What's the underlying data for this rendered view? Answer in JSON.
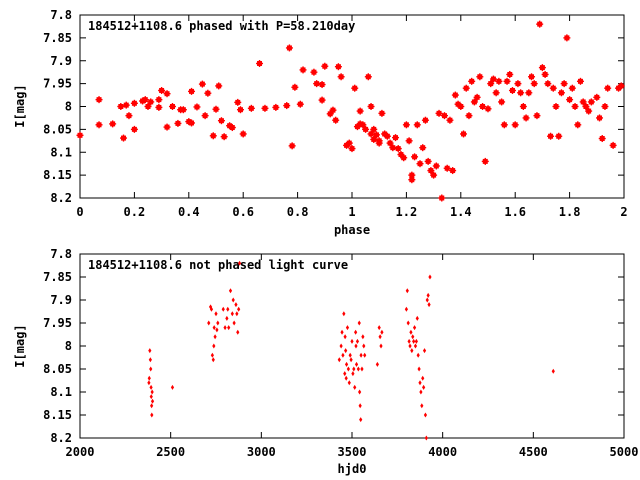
{
  "chart_data": [
    {
      "type": "scatter",
      "title": "184512+1108.6 phased with P=58.210day",
      "xlabel": "phase",
      "ylabel": "I[mag]",
      "xlim": [
        0,
        2
      ],
      "ylim": [
        8.2,
        7.8
      ],
      "y_inverted": true,
      "xticks": [
        "0",
        "0.2",
        "0.4",
        "0.6",
        "0.8",
        "1",
        "1.2",
        "1.4",
        "1.6",
        "1.8",
        "2"
      ],
      "yticks": [
        "7.8",
        "7.85",
        "7.9",
        "7.95",
        "8",
        "8.05",
        "8.1",
        "8.15",
        "8.2"
      ],
      "grid": false,
      "marker_color": "#ff0000",
      "series": [
        {
          "points": [
            [
              0.0,
              8.063
            ],
            [
              0.07,
              7.985
            ],
            [
              0.07,
              8.04
            ],
            [
              0.12,
              8.038
            ],
            [
              0.15,
              8.0
            ],
            [
              0.16,
              8.069
            ],
            [
              0.17,
              7.997
            ],
            [
              0.18,
              8.02
            ],
            [
              0.2,
              7.993
            ],
            [
              0.2,
              8.05
            ],
            [
              0.23,
              7.988
            ],
            [
              0.24,
              7.985
            ],
            [
              0.25,
              8.0
            ],
            [
              0.26,
              7.99
            ],
            [
              0.29,
              7.985
            ],
            [
              0.29,
              8.002
            ],
            [
              0.3,
              7.965
            ],
            [
              0.32,
              7.972
            ],
            [
              0.32,
              8.045
            ],
            [
              0.34,
              8.0
            ],
            [
              0.36,
              8.037
            ],
            [
              0.37,
              8.007
            ],
            [
              0.38,
              8.007
            ],
            [
              0.4,
              8.033
            ],
            [
              0.41,
              7.967
            ],
            [
              0.41,
              8.036
            ],
            [
              0.43,
              8.001
            ],
            [
              0.45,
              7.951
            ],
            [
              0.46,
              8.02
            ],
            [
              0.47,
              7.971
            ],
            [
              0.49,
              8.064
            ],
            [
              0.5,
              8.006
            ],
            [
              0.51,
              7.955
            ],
            [
              0.52,
              8.031
            ],
            [
              0.53,
              8.066
            ],
            [
              0.55,
              8.042
            ],
            [
              0.56,
              8.046
            ],
            [
              0.58,
              7.991
            ],
            [
              0.59,
              8.007
            ],
            [
              0.6,
              8.06
            ],
            [
              0.63,
              8.004
            ],
            [
              0.66,
              7.906
            ],
            [
              0.68,
              8.004
            ],
            [
              0.72,
              8.002
            ],
            [
              0.76,
              7.998
            ],
            [
              0.77,
              7.872
            ],
            [
              0.78,
              8.086
            ],
            [
              0.79,
              7.958
            ],
            [
              0.81,
              7.995
            ],
            [
              0.82,
              7.92
            ],
            [
              0.86,
              7.925
            ],
            [
              0.87,
              7.95
            ],
            [
              0.89,
              7.952
            ],
            [
              0.89,
              7.986
            ],
            [
              0.9,
              7.912
            ],
            [
              0.92,
              8.016
            ],
            [
              0.93,
              8.008
            ],
            [
              0.94,
              8.03
            ],
            [
              0.95,
              7.913
            ],
            [
              0.96,
              7.935
            ],
            [
              0.98,
              8.085
            ],
            [
              0.99,
              8.08
            ],
            [
              1.0,
              8.092
            ],
            [
              1.01,
              7.96
            ],
            [
              1.02,
              8.044
            ],
            [
              1.03,
              8.01
            ],
            [
              1.03,
              8.038
            ],
            [
              1.04,
              8.04
            ],
            [
              1.05,
              8.05
            ],
            [
              1.06,
              7.935
            ],
            [
              1.07,
              8.0
            ],
            [
              1.07,
              8.06
            ],
            [
              1.08,
              8.05
            ],
            [
              1.08,
              8.072
            ],
            [
              1.09,
              8.062
            ],
            [
              1.1,
              8.075
            ],
            [
              1.1,
              8.08
            ],
            [
              1.11,
              8.015
            ],
            [
              1.12,
              8.06
            ],
            [
              1.13,
              8.065
            ],
            [
              1.14,
              8.08
            ],
            [
              1.15,
              8.09
            ],
            [
              1.16,
              8.068
            ],
            [
              1.17,
              8.092
            ],
            [
              1.18,
              8.105
            ],
            [
              1.19,
              8.112
            ],
            [
              1.2,
              8.04
            ],
            [
              1.21,
              8.075
            ],
            [
              1.22,
              8.15
            ],
            [
              1.22,
              8.16
            ],
            [
              1.23,
              8.11
            ],
            [
              1.24,
              8.04
            ],
            [
              1.25,
              8.125
            ],
            [
              1.26,
              8.09
            ],
            [
              1.27,
              8.03
            ],
            [
              1.28,
              8.12
            ],
            [
              1.29,
              8.14
            ],
            [
              1.3,
              8.15
            ],
            [
              1.31,
              8.13
            ],
            [
              1.32,
              8.015
            ],
            [
              1.33,
              8.2
            ],
            [
              1.34,
              8.02
            ],
            [
              1.35,
              8.135
            ],
            [
              1.36,
              8.03
            ],
            [
              1.37,
              8.14
            ],
            [
              1.38,
              7.975
            ],
            [
              1.39,
              7.995
            ],
            [
              1.4,
              8.0
            ],
            [
              1.41,
              8.06
            ],
            [
              1.42,
              7.96
            ],
            [
              1.43,
              8.02
            ],
            [
              1.44,
              7.945
            ],
            [
              1.45,
              7.99
            ],
            [
              1.46,
              7.98
            ],
            [
              1.47,
              7.935
            ],
            [
              1.48,
              8.0
            ],
            [
              1.49,
              8.12
            ],
            [
              1.5,
              8.005
            ],
            [
              1.51,
              7.95
            ],
            [
              1.52,
              7.94
            ],
            [
              1.53,
              7.97
            ],
            [
              1.54,
              7.945
            ],
            [
              1.55,
              7.99
            ],
            [
              1.56,
              8.04
            ],
            [
              1.57,
              7.945
            ],
            [
              1.58,
              7.93
            ],
            [
              1.59,
              7.965
            ],
            [
              1.6,
              8.04
            ],
            [
              1.61,
              7.95
            ],
            [
              1.62,
              7.97
            ],
            [
              1.63,
              8.0
            ],
            [
              1.64,
              8.025
            ],
            [
              1.65,
              7.97
            ],
            [
              1.66,
              7.935
            ],
            [
              1.67,
              7.95
            ],
            [
              1.68,
              8.02
            ],
            [
              1.69,
              7.82
            ],
            [
              1.7,
              7.915
            ],
            [
              1.71,
              7.93
            ],
            [
              1.72,
              7.95
            ],
            [
              1.73,
              8.065
            ],
            [
              1.74,
              7.96
            ],
            [
              1.75,
              8.0
            ],
            [
              1.76,
              8.065
            ],
            [
              1.77,
              7.97
            ],
            [
              1.78,
              7.95
            ],
            [
              1.79,
              7.85
            ],
            [
              1.8,
              7.985
            ],
            [
              1.81,
              7.96
            ],
            [
              1.82,
              8.0
            ],
            [
              1.83,
              8.04
            ],
            [
              1.84,
              7.945
            ],
            [
              1.85,
              7.99
            ],
            [
              1.86,
              8.0
            ],
            [
              1.87,
              8.01
            ],
            [
              1.88,
              7.99
            ],
            [
              1.9,
              7.98
            ],
            [
              1.91,
              8.025
            ],
            [
              1.92,
              8.07
            ],
            [
              1.93,
              8.0
            ],
            [
              1.94,
              7.96
            ],
            [
              1.96,
              8.085
            ],
            [
              1.98,
              7.96
            ],
            [
              1.99,
              7.955
            ]
          ]
        }
      ]
    },
    {
      "type": "scatter",
      "title": "184512+1108.6 not phased light curve",
      "xlabel": "hjd0",
      "ylabel": "I[mag]",
      "xlim": [
        2000,
        5000
      ],
      "ylim": [
        8.2,
        7.8
      ],
      "y_inverted": true,
      "xticks": [
        "2000",
        "2500",
        "3000",
        "3500",
        "4000",
        "4500",
        "5000"
      ],
      "yticks": [
        "7.8",
        "7.85",
        "7.9",
        "7.95",
        "8",
        "8.05",
        "8.1",
        "8.15",
        "8.2"
      ],
      "grid": false,
      "marker_color": "#ff0000",
      "series": [
        {
          "points": [
            [
              2380,
              8.08
            ],
            [
              2382,
              8.07
            ],
            [
              2385,
              8.01
            ],
            [
              2388,
              8.03
            ],
            [
              2390,
              8.05
            ],
            [
              2392,
              8.09
            ],
            [
              2393,
              8.11
            ],
            [
              2395,
              8.13
            ],
            [
              2396,
              8.15
            ],
            [
              2398,
              8.1
            ],
            [
              2400,
              8.12
            ],
            [
              2510,
              8.09
            ],
            [
              2710,
              7.95
            ],
            [
              2720,
              7.915
            ],
            [
              2725,
              7.92
            ],
            [
              2730,
              8.02
            ],
            [
              2735,
              8.03
            ],
            [
              2738,
              8.0
            ],
            [
              2740,
              7.96
            ],
            [
              2745,
              7.98
            ],
            [
              2750,
              7.93
            ],
            [
              2755,
              7.965
            ],
            [
              2760,
              7.95
            ],
            [
              2790,
              7.92
            ],
            [
              2800,
              7.96
            ],
            [
              2810,
              7.94
            ],
            [
              2815,
              7.92
            ],
            [
              2820,
              7.96
            ],
            [
              2830,
              7.88
            ],
            [
              2840,
              7.93
            ],
            [
              2845,
              7.9
            ],
            [
              2850,
              7.95
            ],
            [
              2860,
              7.91
            ],
            [
              2865,
              7.93
            ],
            [
              2870,
              7.97
            ],
            [
              2875,
              7.92
            ],
            [
              2880,
              7.82
            ],
            [
              3430,
              8.03
            ],
            [
              3440,
              8.0
            ],
            [
              3445,
              7.97
            ],
            [
              3450,
              8.02
            ],
            [
              3455,
              7.93
            ],
            [
              3460,
              8.06
            ],
            [
              3462,
              7.98
            ],
            [
              3465,
              8.01
            ],
            [
              3468,
              8.07
            ],
            [
              3470,
              8.04
            ],
            [
              3475,
              7.96
            ],
            [
              3480,
              8.05
            ],
            [
              3485,
              8.08
            ],
            [
              3490,
              8.02
            ],
            [
              3495,
              8.03
            ],
            [
              3500,
              7.99
            ],
            [
              3505,
              8.06
            ],
            [
              3510,
              8.05
            ],
            [
              3515,
              8.09
            ],
            [
              3520,
              7.97
            ],
            [
              3522,
              8.0
            ],
            [
              3525,
              8.04
            ],
            [
              3530,
              7.99
            ],
            [
              3535,
              8.05
            ],
            [
              3540,
              7.95
            ],
            [
              3542,
              8.1
            ],
            [
              3545,
              8.13
            ],
            [
              3548,
              8.16
            ],
            [
              3550,
              8.02
            ],
            [
              3555,
              8.05
            ],
            [
              3560,
              7.98
            ],
            [
              3565,
              8.0
            ],
            [
              3570,
              8.02
            ],
            [
              3640,
              8.04
            ],
            [
              3650,
              7.96
            ],
            [
              3655,
              7.98
            ],
            [
              3660,
              8.0
            ],
            [
              3665,
              7.97
            ],
            [
              3800,
              7.92
            ],
            [
              3805,
              7.88
            ],
            [
              3810,
              7.95
            ],
            [
              3815,
              7.99
            ],
            [
              3820,
              8.0
            ],
            [
              3825,
              7.97
            ],
            [
              3830,
              8.01
            ],
            [
              3835,
              7.98
            ],
            [
              3840,
              7.99
            ],
            [
              3845,
              7.96
            ],
            [
              3850,
              8.0
            ],
            [
              3855,
              7.99
            ],
            [
              3860,
              7.94
            ],
            [
              3865,
              8.02
            ],
            [
              3870,
              8.05
            ],
            [
              3875,
              8.08
            ],
            [
              3880,
              8.1
            ],
            [
              3885,
              8.13
            ],
            [
              3890,
              8.07
            ],
            [
              3895,
              8.09
            ],
            [
              3900,
              8.01
            ],
            [
              3905,
              8.15
            ],
            [
              3910,
              8.2
            ],
            [
              3915,
              7.9
            ],
            [
              3920,
              7.89
            ],
            [
              3925,
              7.91
            ],
            [
              3930,
              7.85
            ],
            [
              4610,
              8.055
            ]
          ]
        }
      ]
    }
  ]
}
